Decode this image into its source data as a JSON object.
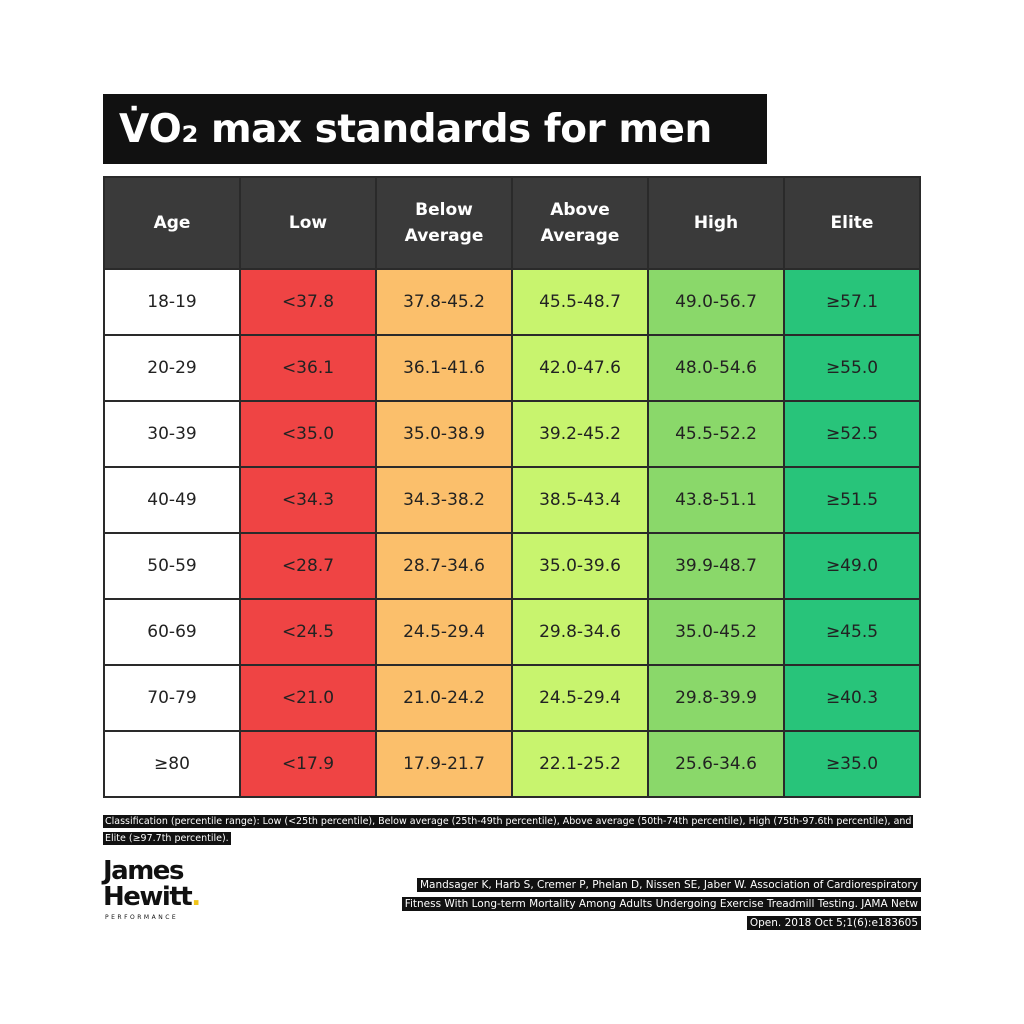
{
  "title": "V̇O₂ max standards for men",
  "table": {
    "headers": [
      "Age",
      "Low",
      "Below\nAverage",
      "Above\nAverage",
      "High",
      "Elite"
    ],
    "rows": [
      [
        "18-19",
        "<37.8",
        "37.8-45.2",
        "45.5-48.7",
        "49.0-56.7",
        "≥57.1"
      ],
      [
        "20-29",
        "<36.1",
        "36.1-41.6",
        "42.0-47.6",
        "48.0-54.6",
        "≥55.0"
      ],
      [
        "30-39",
        "<35.0",
        "35.0-38.9",
        "39.2-45.2",
        "45.5-52.2",
        "≥52.5"
      ],
      [
        "40-49",
        "<34.3",
        "34.3-38.2",
        "38.5-43.4",
        "43.8-51.1",
        "≥51.5"
      ],
      [
        "50-59",
        "<28.7",
        "28.7-34.6",
        "35.0-39.6",
        "39.9-48.7",
        "≥49.0"
      ],
      [
        "60-69",
        "<24.5",
        "24.5-29.4",
        "29.8-34.6",
        "35.0-45.2",
        "≥45.5"
      ],
      [
        "70-79",
        "<21.0",
        "21.0-24.2",
        "24.5-29.4",
        "29.8-39.9",
        "≥40.3"
      ],
      [
        "≥80",
        "<17.9",
        "17.9-21.7",
        "22.1-25.2",
        "25.6-34.6",
        "≥35.0"
      ]
    ],
    "column_colors": {
      "age": "#ffffff",
      "low": "#ef4444",
      "below_average": "#fbbf6b",
      "above_average": "#c8f46e",
      "high": "#8ad86a",
      "elite": "#28c47a"
    },
    "header_color": "#3a3a3a"
  },
  "classification_note": "Classification (percentile range): Low (<25th percentile), Below average (25th-49th percentile), Above average (50th-74th percentile), High (75th-97.6th percentile), and Elite (≥97.7th percentile).",
  "logo": {
    "line1": "James",
    "line2": "Hewitt",
    "dot": ".",
    "subtitle": "PERFORMANCE",
    "dot_color": "#f0c419"
  },
  "citation": "Mandsager K, Harb S, Cremer P, Phelan D, Nissen SE, Jaber W. Association of Cardiorespiratory Fitness With Long-term Mortality Among Adults Undergoing Exercise Treadmill Testing. JAMA Netw Open. 2018 Oct 5;1(6):e183605"
}
